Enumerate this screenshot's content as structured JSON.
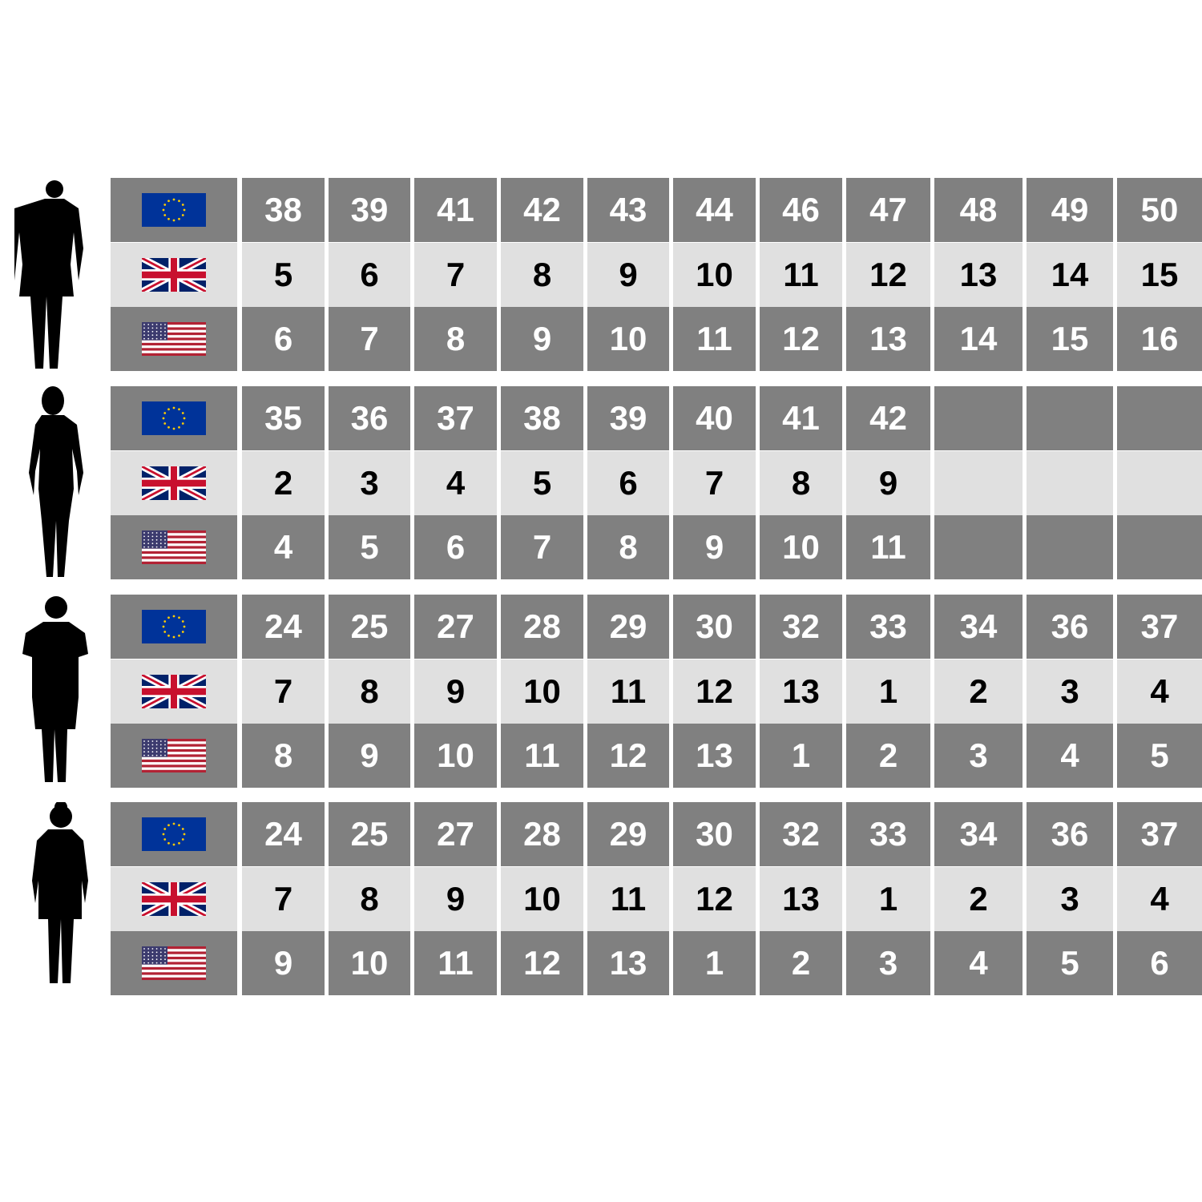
{
  "colors": {
    "dark_row": "#808080",
    "light_row": "#e0e0e0",
    "eu_blue": "#003399",
    "eu_star": "#ffcc00",
    "uk_blue": "#012169",
    "uk_red": "#c8102e",
    "us_red": "#b22234",
    "us_blue": "#3c3b6e"
  },
  "row_labels": [
    {
      "region": "EU",
      "icon": "eu-flag-icon"
    },
    {
      "region": "UK",
      "icon": "uk-flag-icon"
    },
    {
      "region": "US",
      "icon": "us-flag-icon"
    }
  ],
  "groups": [
    {
      "figure": "man-silhouette-icon",
      "eu": [
        "38",
        "39",
        "41",
        "42",
        "43",
        "44",
        "46",
        "47",
        "48",
        "49",
        "50"
      ],
      "uk": [
        "5",
        "6",
        "7",
        "8",
        "9",
        "10",
        "11",
        "12",
        "13",
        "14",
        "15"
      ],
      "us": [
        "6",
        "7",
        "8",
        "9",
        "10",
        "11",
        "12",
        "13",
        "14",
        "15",
        "16"
      ]
    },
    {
      "figure": "woman-silhouette-icon",
      "eu": [
        "35",
        "36",
        "37",
        "38",
        "39",
        "40",
        "41",
        "42",
        "",
        "",
        ""
      ],
      "uk": [
        "2",
        "3",
        "4",
        "5",
        "6",
        "7",
        "8",
        "9",
        "",
        "",
        ""
      ],
      "us": [
        "4",
        "5",
        "6",
        "7",
        "8",
        "9",
        "10",
        "11",
        "",
        "",
        ""
      ]
    },
    {
      "figure": "boy-silhouette-icon",
      "eu": [
        "24",
        "25",
        "27",
        "28",
        "29",
        "30",
        "32",
        "33",
        "34",
        "36",
        "37"
      ],
      "uk": [
        "7",
        "8",
        "9",
        "10",
        "11",
        "12",
        "13",
        "1",
        "2",
        "3",
        "4"
      ],
      "us": [
        "8",
        "9",
        "10",
        "11",
        "12",
        "13",
        "1",
        "2",
        "3",
        "4",
        "5"
      ]
    },
    {
      "figure": "girl-silhouette-icon",
      "eu": [
        "24",
        "25",
        "27",
        "28",
        "29",
        "30",
        "32",
        "33",
        "34",
        "36",
        "37"
      ],
      "uk": [
        "7",
        "8",
        "9",
        "10",
        "11",
        "12",
        "13",
        "1",
        "2",
        "3",
        "4"
      ],
      "us": [
        "9",
        "10",
        "11",
        "12",
        "13",
        "1",
        "2",
        "3",
        "4",
        "5",
        "6"
      ]
    }
  ]
}
